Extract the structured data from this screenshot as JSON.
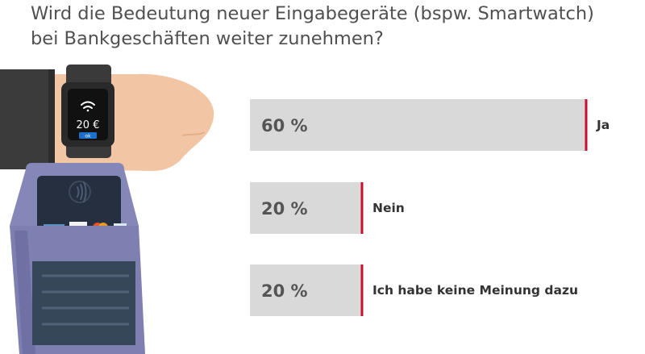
{
  "title": {
    "line1": "Wird die Bedeutung neuer Eingabegeräte (bspw. Smartwatch)",
    "line2": "bei Bankgeschäften weiter zunehmen?"
  },
  "watch": {
    "amount": "20 €",
    "button": "ok"
  },
  "chart_data": {
    "type": "bar",
    "orientation": "horizontal",
    "categories": [
      "Ja",
      "Nein",
      "Ich habe keine Meinung dazu"
    ],
    "values": [
      60,
      20,
      20
    ],
    "value_labels": [
      "60 %",
      "20 %",
      "20 %"
    ],
    "xlim": [
      0,
      100
    ],
    "title": "Wird die Bedeutung neuer Eingabegeräte (bspw. Smartwatch) bei Bankgeschäften weiter zunehmen?",
    "grid": false,
    "legend": "none",
    "bar_color": "#d9d9d9",
    "marker_color": "#c8102e",
    "value_label_color": "#555555",
    "category_label_color": "#333333"
  }
}
